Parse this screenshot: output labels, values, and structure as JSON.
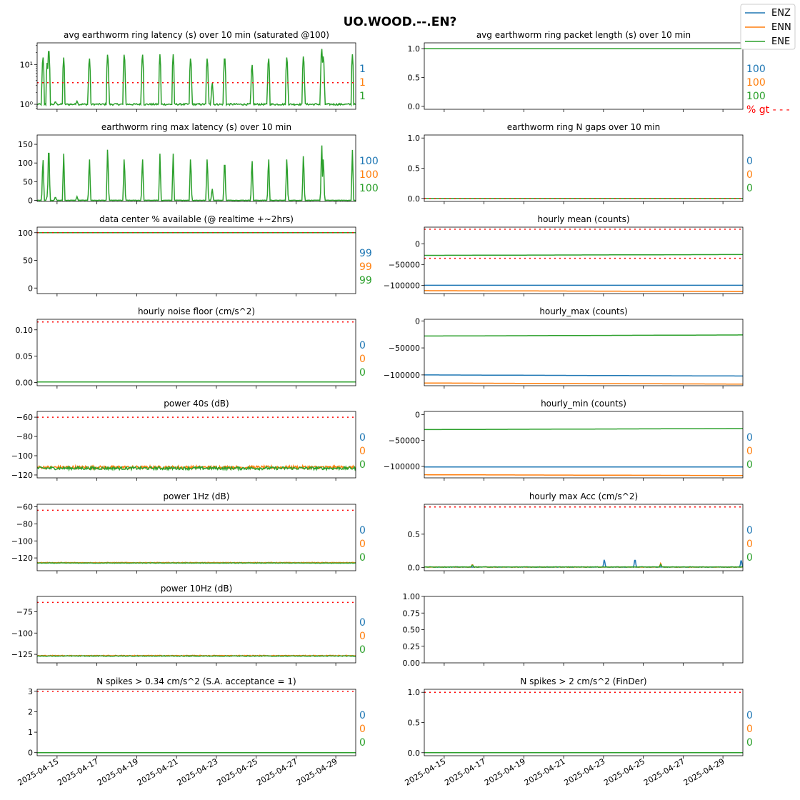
{
  "figure_title": "UO.WOOD.--.EN?",
  "legend": {
    "placement": "top-right",
    "entries": [
      {
        "label": "ENZ",
        "color": "#1f77b4"
      },
      {
        "label": "ENN",
        "color": "#ff7f0e"
      },
      {
        "label": "ENE",
        "color": "#2ca02c"
      }
    ]
  },
  "threshold_color": "#ff0000",
  "shared_x": {
    "type": "date",
    "range": [
      "2025-04-14",
      "2025-04-30"
    ],
    "ticks": [
      "2025-04-15",
      "2025-04-17",
      "2025-04-19",
      "2025-04-21",
      "2025-04-23",
      "2025-04-25",
      "2025-04-27",
      "2025-04-29"
    ]
  },
  "chart_data": [
    {
      "id": "p1",
      "type": "line",
      "title": "avg earthworm ring latency (s)   over 10 min (saturated @100)",
      "yscale": "log",
      "ylim": [
        0.75,
        35
      ],
      "yticks": [
        1,
        10
      ],
      "ytick_labels": [
        "10⁰",
        "10¹"
      ],
      "threshold_lines": [
        3.5
      ],
      "series": [
        {
          "channel": "ENE",
          "baseline": 1.0,
          "noise": 0.05,
          "spikes": [
            [
              "2025-04-14T07:00",
              17
            ],
            [
              "2025-04-14T12:00",
              11
            ],
            [
              "2025-04-14T14:00",
              28
            ],
            [
              "2025-04-14T22:00",
              1.2
            ],
            [
              "2025-04-15T08:00",
              15
            ],
            [
              "2025-04-16T00:00",
              1.2
            ],
            [
              "2025-04-16T15:00",
              16
            ],
            [
              "2025-04-17T13:00",
              20
            ],
            [
              "2025-04-18T09:00",
              20
            ],
            [
              "2025-04-19T07:00",
              20
            ],
            [
              "2025-04-20T04:00",
              18
            ],
            [
              "2025-04-20T20:00",
              18
            ],
            [
              "2025-04-21T17:00",
              16
            ],
            [
              "2025-04-22T13:00",
              16
            ],
            [
              "2025-04-22T19:00",
              3.8
            ],
            [
              "2025-04-23T10:00",
              18
            ],
            [
              "2025-04-24T19:00",
              11
            ],
            [
              "2025-04-25T15:00",
              16
            ],
            [
              "2025-04-26T13:00",
              17
            ],
            [
              "2025-04-27T09:00",
              18
            ],
            [
              "2025-04-28T07:00",
              28
            ],
            [
              "2025-04-28T09:00",
              18
            ],
            [
              "2025-04-29T20:00",
              18
            ]
          ]
        }
      ],
      "annotations": [
        {
          "text": "1",
          "color": "#1f77b4"
        },
        {
          "text": "1",
          "color": "#ff7f0e"
        },
        {
          "text": "1",
          "color": "#2ca02c"
        }
      ]
    },
    {
      "id": "p2",
      "type": "line",
      "title": "avg earthworm ring packet length (s)   over 10 min",
      "yscale": "linear",
      "ylim": [
        -0.05,
        1.1
      ],
      "yticks": [
        0,
        0.5,
        1
      ],
      "ytick_labels": [
        "0.0",
        "0.5",
        "1.0"
      ],
      "threshold_lines": [],
      "series": [
        {
          "channel": "ENE",
          "baseline": 1.0,
          "noise": 0
        }
      ],
      "annotations": [
        {
          "text": "100",
          "color": "#1f77b4"
        },
        {
          "text": "100",
          "color": "#ff7f0e"
        },
        {
          "text": "100",
          "color": "#2ca02c"
        },
        {
          "text": "% gt - - -",
          "color": "#ff0000"
        }
      ]
    },
    {
      "id": "p3",
      "type": "line",
      "title": "earthworm ring max latency (s)   over 10 min",
      "yscale": "linear",
      "ylim": [
        -3,
        175
      ],
      "yticks": [
        0,
        50,
        100,
        150
      ],
      "ytick_labels": [
        "0",
        "50",
        "100",
        "150"
      ],
      "threshold_lines": [],
      "series": [
        {
          "channel": "ENE",
          "baseline": 0,
          "noise": 0.5,
          "spikes": [
            [
              "2025-04-14T07:00",
              123
            ],
            [
              "2025-04-14T12:00",
              10
            ],
            [
              "2025-04-14T14:00",
              168
            ],
            [
              "2025-04-14T22:00",
              10
            ],
            [
              "2025-04-15T08:00",
              125
            ],
            [
              "2025-04-16T00:00",
              10
            ],
            [
              "2025-04-16T15:00",
              125
            ],
            [
              "2025-04-17T13:00",
              155
            ],
            [
              "2025-04-18T09:00",
              125
            ],
            [
              "2025-04-19T07:00",
              125
            ],
            [
              "2025-04-20T04:00",
              125
            ],
            [
              "2025-04-20T20:00",
              125
            ],
            [
              "2025-04-21T17:00",
              125
            ],
            [
              "2025-04-22T13:00",
              125
            ],
            [
              "2025-04-22T19:00",
              35
            ],
            [
              "2025-04-23T10:00",
              125
            ],
            [
              "2025-04-24T19:00",
              120
            ],
            [
              "2025-04-25T15:00",
              125
            ],
            [
              "2025-04-26T13:00",
              125
            ],
            [
              "2025-04-27T09:00",
              135
            ],
            [
              "2025-04-28T07:00",
              168
            ],
            [
              "2025-04-28T09:00",
              125
            ],
            [
              "2025-04-29T20:00",
              135
            ]
          ]
        }
      ],
      "annotations": [
        {
          "text": "100",
          "color": "#1f77b4"
        },
        {
          "text": "100",
          "color": "#ff7f0e"
        },
        {
          "text": "100",
          "color": "#2ca02c"
        }
      ]
    },
    {
      "id": "p4",
      "type": "line",
      "title": "earthworm ring N gaps   over 10 min",
      "yscale": "linear",
      "ylim": [
        -0.05,
        1.05
      ],
      "yticks": [
        0,
        0.5,
        1
      ],
      "ytick_labels": [
        "0.0",
        "0.5",
        "1.0"
      ],
      "threshold_lines": [
        0
      ],
      "series": [
        {
          "channel": "ENE",
          "baseline": 0,
          "noise": 0
        }
      ],
      "annotations": [
        {
          "text": "0",
          "color": "#1f77b4"
        },
        {
          "text": "0",
          "color": "#ff7f0e"
        },
        {
          "text": "0",
          "color": "#2ca02c"
        }
      ]
    },
    {
      "id": "p5",
      "type": "line",
      "title": "data center % available (@ realtime +~2hrs)",
      "yscale": "linear",
      "ylim": [
        -10,
        110
      ],
      "yticks": [
        0,
        50,
        100
      ],
      "ytick_labels": [
        "0",
        "50",
        "100"
      ],
      "threshold_lines": [
        100
      ],
      "series": [
        {
          "channel": "ENE",
          "baseline": 100,
          "noise": 0
        }
      ],
      "annotations": [
        {
          "text": "99",
          "color": "#1f77b4"
        },
        {
          "text": "99",
          "color": "#ff7f0e"
        },
        {
          "text": "99",
          "color": "#2ca02c"
        }
      ]
    },
    {
      "id": "p6",
      "type": "line",
      "title": "hourly mean (counts)",
      "yscale": "linear",
      "ylim": [
        -120000,
        40000
      ],
      "yticks": [
        -100000,
        -50000,
        0
      ],
      "ytick_labels": [
        "−100000",
        "−50000",
        "0"
      ],
      "threshold_lines": [
        35000,
        -35000
      ],
      "series": [
        {
          "channel": "ENZ",
          "start": -100000,
          "end": -100000,
          "noise": 0
        },
        {
          "channel": "ENN",
          "start": -113000,
          "end": -115000,
          "noise": 0
        },
        {
          "channel": "ENE",
          "start": -28000,
          "end": -26000,
          "noise": 0
        }
      ],
      "annotations": []
    },
    {
      "id": "p7",
      "type": "line",
      "title": "hourly noise floor (cm/s^2)",
      "yscale": "linear",
      "ylim": [
        -0.006,
        0.12
      ],
      "yticks": [
        0,
        0.05,
        0.1
      ],
      "ytick_labels": [
        "0.00",
        "0.05",
        "0.10"
      ],
      "threshold_lines": [
        0.115
      ],
      "series": [
        {
          "channel": "ENE",
          "baseline": 0.001,
          "noise": 0
        }
      ],
      "annotations": [
        {
          "text": "0",
          "color": "#1f77b4"
        },
        {
          "text": "0",
          "color": "#ff7f0e"
        },
        {
          "text": "0",
          "color": "#2ca02c"
        }
      ]
    },
    {
      "id": "p8",
      "type": "line",
      "title": "hourly_max (counts)",
      "yscale": "linear",
      "ylim": [
        -120000,
        3000
      ],
      "yticks": [
        -100000,
        -50000,
        0
      ],
      "ytick_labels": [
        "−100000",
        "−50000",
        "0"
      ],
      "threshold_lines": [],
      "series": [
        {
          "channel": "ENZ",
          "start": -100000,
          "end": -102000,
          "noise": 0
        },
        {
          "channel": "ENN",
          "start": -115000,
          "end": -117000,
          "noise": 0
        },
        {
          "channel": "ENE",
          "start": -28000,
          "end": -26000,
          "noise": 0
        }
      ],
      "annotations": []
    },
    {
      "id": "p9",
      "type": "line",
      "title": "power 40s (dB)",
      "yscale": "linear",
      "ylim": [
        -123,
        -54
      ],
      "yticks": [
        -120,
        -100,
        -80,
        -60
      ],
      "ytick_labels": [
        "−120",
        "−100",
        "−80",
        "−60"
      ],
      "threshold_lines": [
        -60
      ],
      "series": [
        {
          "channel": "ENN",
          "baseline": -112,
          "noise": 1.5
        },
        {
          "channel": "ENE",
          "baseline": -113,
          "noise": 1.5
        }
      ],
      "annotations": [
        {
          "text": "0",
          "color": "#1f77b4"
        },
        {
          "text": "0",
          "color": "#ff7f0e"
        },
        {
          "text": "0",
          "color": "#2ca02c"
        }
      ]
    },
    {
      "id": "p10",
      "type": "line",
      "title": "hourly_min (counts)",
      "yscale": "linear",
      "ylim": [
        -122000,
        6000
      ],
      "yticks": [
        -100000,
        -50000,
        0
      ],
      "ytick_labels": [
        "−100000",
        "−50000",
        "0"
      ],
      "threshold_lines": [],
      "series": [
        {
          "channel": "ENZ",
          "start": -101000,
          "end": -101000,
          "noise": 0
        },
        {
          "channel": "ENN",
          "start": -116000,
          "end": -117500,
          "noise": 0
        },
        {
          "channel": "ENE",
          "start": -29000,
          "end": -27000,
          "noise": 0
        }
      ],
      "annotations": [
        {
          "text": "0",
          "color": "#1f77b4"
        },
        {
          "text": "0",
          "color": "#ff7f0e"
        },
        {
          "text": "0",
          "color": "#2ca02c"
        }
      ]
    },
    {
      "id": "p11",
      "type": "line",
      "title": "power 1Hz (dB)",
      "yscale": "linear",
      "ylim": [
        -135,
        -57
      ],
      "yticks": [
        -120,
        -100,
        -80,
        -60
      ],
      "ytick_labels": [
        "−120",
        "−100",
        "−80",
        "−60"
      ],
      "threshold_lines": [
        -64
      ],
      "series": [
        {
          "channel": "ENN",
          "baseline": -125.5,
          "noise": 0.3
        },
        {
          "channel": "ENE",
          "baseline": -126,
          "noise": 0.3
        }
      ],
      "annotations": [
        {
          "text": "0",
          "color": "#1f77b4"
        },
        {
          "text": "0",
          "color": "#ff7f0e"
        },
        {
          "text": "0",
          "color": "#2ca02c"
        }
      ]
    },
    {
      "id": "p12",
      "type": "line",
      "title": "hourly max Acc (cm/s^2)",
      "yscale": "linear",
      "ylim": [
        -0.05,
        0.95
      ],
      "yticks": [
        0,
        0.5
      ],
      "ytick_labels": [
        "0.0",
        "0.5"
      ],
      "threshold_lines": [
        0.91
      ],
      "series": [
        {
          "channel": "ENZ",
          "baseline": 0.005,
          "noise": 0.003,
          "spikes": [
            [
              "2025-04-23T01:00",
              0.13
            ],
            [
              "2025-04-24T14:00",
              0.14
            ],
            [
              "2025-04-29T22:00",
              0.13
            ]
          ]
        },
        {
          "channel": "ENN",
          "baseline": 0.005,
          "noise": 0.003,
          "spikes": [
            [
              "2025-04-16T10:00",
              0.05
            ],
            [
              "2025-04-25T21:00",
              0.07
            ]
          ]
        },
        {
          "channel": "ENE",
          "baseline": 0.006,
          "noise": 0.004,
          "spikes": [
            [
              "2025-04-16T10:00",
              0.04
            ],
            [
              "2025-04-25T21:00",
              0.05
            ]
          ]
        }
      ],
      "annotations": [
        {
          "text": "0",
          "color": "#1f77b4"
        },
        {
          "text": "0",
          "color": "#ff7f0e"
        },
        {
          "text": "0",
          "color": "#2ca02c"
        }
      ]
    },
    {
      "id": "p13",
      "type": "line",
      "title": "power 10Hz (dB)",
      "yscale": "linear",
      "ylim": [
        -135,
        -57
      ],
      "yticks": [
        -125,
        -100,
        -75
      ],
      "ytick_labels": [
        "−125",
        "−100",
        "−75"
      ],
      "threshold_lines": [
        -64
      ],
      "series": [
        {
          "channel": "ENN",
          "baseline": -126.5,
          "noise": 0.4
        },
        {
          "channel": "ENE",
          "baseline": -127,
          "noise": 0.4
        }
      ],
      "annotations": [
        {
          "text": "0",
          "color": "#1f77b4"
        },
        {
          "text": "0",
          "color": "#ff7f0e"
        },
        {
          "text": "0",
          "color": "#2ca02c"
        }
      ]
    },
    {
      "id": "p14",
      "type": "empty",
      "title": "",
      "yscale": "linear",
      "ylim": [
        0,
        1
      ],
      "yticks": [
        0,
        0.25,
        0.5,
        0.75,
        1
      ],
      "ytick_labels": [
        "0.00",
        "0.25",
        "0.50",
        "0.75",
        "1.00"
      ],
      "threshold_lines": [],
      "series": [],
      "annotations": []
    },
    {
      "id": "p15",
      "type": "line",
      "title": "N spikes > 0.34 cm/s^2 (S.A. acceptance = 1)",
      "yscale": "linear",
      "ylim": [
        -0.15,
        3.1
      ],
      "yticks": [
        0,
        1,
        2,
        3
      ],
      "ytick_labels": [
        "0",
        "1",
        "2",
        "3"
      ],
      "threshold_lines": [
        3
      ],
      "series": [
        {
          "channel": "ENE",
          "baseline": 0,
          "noise": 0
        }
      ],
      "annotations": [
        {
          "text": "0",
          "color": "#1f77b4"
        },
        {
          "text": "0",
          "color": "#ff7f0e"
        },
        {
          "text": "0",
          "color": "#2ca02c"
        }
      ]
    },
    {
      "id": "p16",
      "type": "line",
      "title": "N spikes > 2 cm/s^2 (FinDer)",
      "yscale": "linear",
      "ylim": [
        -0.05,
        1.05
      ],
      "yticks": [
        0,
        0.5,
        1
      ],
      "ytick_labels": [
        "0.0",
        "0.5",
        "1.0"
      ],
      "threshold_lines": [
        1
      ],
      "series": [
        {
          "channel": "ENE",
          "baseline": 0,
          "noise": 0
        }
      ],
      "annotations": [
        {
          "text": "0",
          "color": "#1f77b4"
        },
        {
          "text": "0",
          "color": "#ff7f0e"
        },
        {
          "text": "0",
          "color": "#2ca02c"
        }
      ]
    }
  ]
}
